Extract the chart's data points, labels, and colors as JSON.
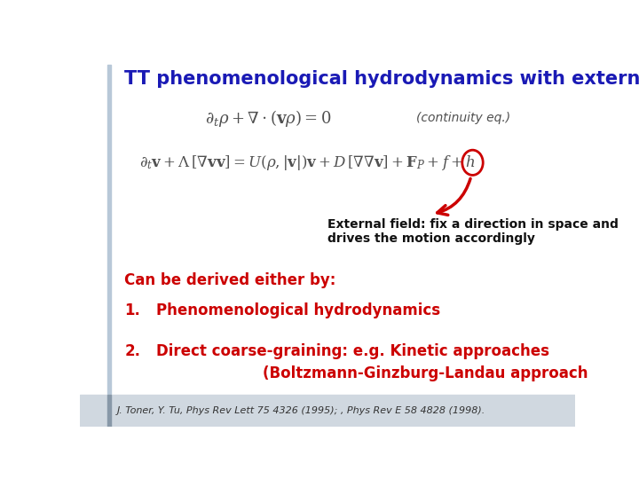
{
  "title": "TT phenomenological hydrodynamics with external field",
  "title_color": "#1A1AB5",
  "title_fontsize": 15,
  "bg_color": "#FFFFFF",
  "left_bar_color": "#B8C8D8",
  "footer_bg_color": "#D0D8E0",
  "eq_color": "#505050",
  "annotation_color": "#111111",
  "arrow_color": "#CC0000",
  "circle_color": "#CC0000",
  "derived_color": "#CC0000",
  "derived_label": "Can be derived either by:",
  "item1_num": "1.",
  "item1_text": "Phenomenological hydrodynamics",
  "item2_num": "2.",
  "item2_line1": "Direct coarse-graining: e.g. Kinetic approaches",
  "item2_line2": "(Boltzmann-Ginzburg-Landau approach",
  "eq1_note": "(continuity eq.)",
  "annotation_text": "External field: fix a direction in space and\ndrives the motion accordingly",
  "footer": "J. Toner, Y. Tu, Phys Rev Lett 75 4326 (1995); , Phys Rev E 58 4828 (1998).",
  "footer_color": "#333333"
}
